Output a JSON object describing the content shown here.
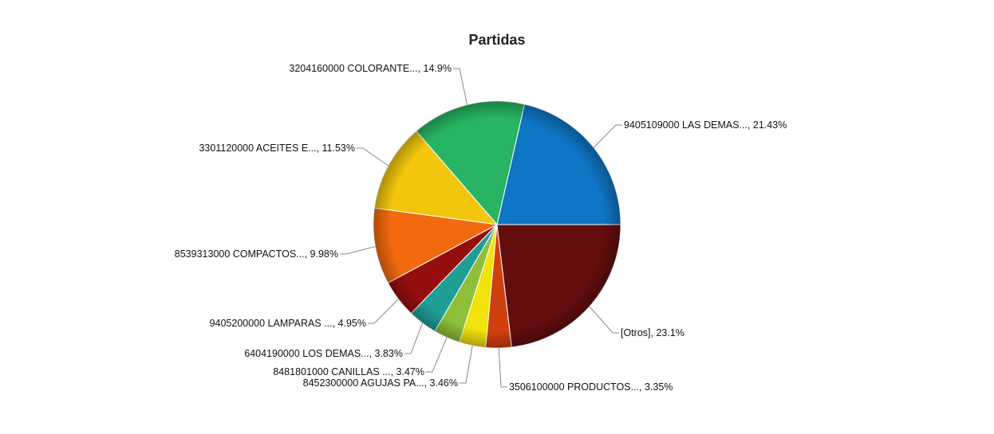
{
  "chart_data": {
    "type": "pie",
    "title": "Partidas",
    "start_angle_deg": 0,
    "direction": "counterclockwise",
    "slices": [
      {
        "label": "9405109000 LAS DEMAS...",
        "value": 21.43,
        "display": "9405109000 LAS DEMAS..., 21.43%",
        "color": "#0e76c4"
      },
      {
        "label": "3204160000 COLORANTE...",
        "value": 14.9,
        "display": "3204160000 COLORANTE..., 14.9%",
        "color": "#27b463"
      },
      {
        "label": "3301120000 ACEITES E...",
        "value": 11.53,
        "display": "3301120000 ACEITES E..., 11.53%",
        "color": "#f2c60d"
      },
      {
        "label": "8539313000 COMPACTOS...",
        "value": 9.98,
        "display": "8539313000 COMPACTOS..., 9.98%",
        "color": "#f26a0d"
      },
      {
        "label": "9405200000 LAMPARAS ...",
        "value": 4.95,
        "display": "9405200000 LAMPARAS ..., 4.95%",
        "color": "#960d0d"
      },
      {
        "label": "6404190000 LOS DEMAS...",
        "value": 3.83,
        "display": "6404190000 LOS DEMAS..., 3.83%",
        "color": "#1f9e95"
      },
      {
        "label": "8481801000 CANILLAS ...",
        "value": 3.47,
        "display": "8481801000 CANILLAS ..., 3.47%",
        "color": "#8dbf3b"
      },
      {
        "label": "8452300000 AGUJAS PA...",
        "value": 3.46,
        "display": "8452300000 AGUJAS PA..., 3.46%",
        "color": "#f2e20d"
      },
      {
        "label": "3506100000 PRODUCTOS...",
        "value": 3.35,
        "display": "3506100000 PRODUCTOS..., 3.35%",
        "color": "#d0400f"
      },
      {
        "label": "[Otros]",
        "value": 23.1,
        "display": "[Otros], 23.1%",
        "color": "#640d0d"
      }
    ]
  }
}
